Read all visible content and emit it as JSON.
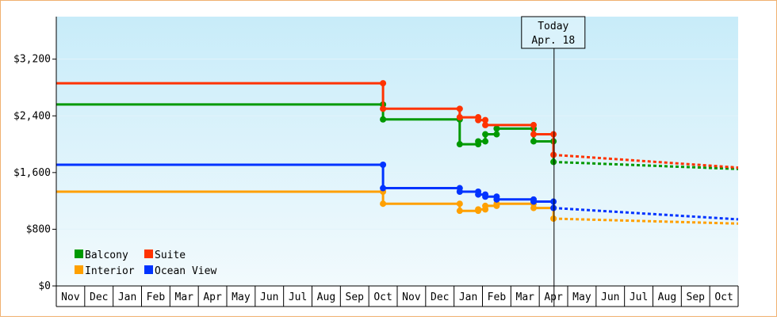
{
  "chart_data": {
    "type": "line",
    "y_ticks": [
      "$0",
      "$800",
      "$1,600",
      "$2,400",
      "$3,200"
    ],
    "y_tick_values": [
      0,
      800,
      1600,
      2400,
      3200
    ],
    "ylim": [
      0,
      3800
    ],
    "x_months": [
      "Nov",
      "Dec",
      "Jan",
      "Feb",
      "Mar",
      "Apr",
      "May",
      "Jun",
      "Jul",
      "Aug",
      "Sep",
      "Oct",
      "Nov",
      "Dec",
      "Jan",
      "Feb",
      "Mar",
      "Apr",
      "May",
      "Jun",
      "Jul",
      "Aug",
      "Sep",
      "Oct"
    ],
    "today_marker": {
      "line1": "Today",
      "line2": "Apr. 18",
      "x": 17.52
    },
    "legend": [
      {
        "label": "Balcony",
        "color": "#009900"
      },
      {
        "label": "Suite",
        "color": "#ff3300"
      },
      {
        "label": "Interior",
        "color": "#ffa000"
      },
      {
        "label": "Ocean View",
        "color": "#0033ff"
      }
    ],
    "series": [
      {
        "name": "Balcony",
        "color": "#009900",
        "points": [
          [
            0,
            2560
          ],
          [
            11.5,
            2560
          ],
          [
            11.5,
            2350
          ],
          [
            14.2,
            2350
          ],
          [
            14.2,
            2000
          ],
          [
            14.85,
            2000
          ],
          [
            14.85,
            2040
          ],
          [
            15.1,
            2040
          ],
          [
            15.1,
            2140
          ],
          [
            15.5,
            2140
          ],
          [
            15.5,
            2220
          ],
          [
            16.8,
            2220
          ],
          [
            16.8,
            2040
          ],
          [
            17.5,
            2040
          ],
          [
            17.5,
            1750
          ]
        ],
        "markers": [
          [
            11.5,
            2560
          ],
          [
            11.5,
            2350
          ],
          [
            14.2,
            2350
          ],
          [
            14.2,
            2000
          ],
          [
            14.85,
            2000
          ],
          [
            14.85,
            2040
          ],
          [
            15.1,
            2040
          ],
          [
            15.1,
            2140
          ],
          [
            15.5,
            2140
          ],
          [
            15.5,
            2220
          ],
          [
            16.8,
            2220
          ],
          [
            16.8,
            2040
          ],
          [
            17.5,
            2040
          ],
          [
            17.5,
            1750
          ]
        ],
        "forecast": [
          [
            17.5,
            1750
          ],
          [
            24,
            1650
          ]
        ]
      },
      {
        "name": "Suite",
        "color": "#ff3300",
        "points": [
          [
            0,
            2860
          ],
          [
            11.5,
            2860
          ],
          [
            11.5,
            2500
          ],
          [
            14.2,
            2500
          ],
          [
            14.2,
            2380
          ],
          [
            14.85,
            2380
          ],
          [
            14.85,
            2340
          ],
          [
            15.1,
            2340
          ],
          [
            15.1,
            2270
          ],
          [
            16.8,
            2270
          ],
          [
            16.8,
            2140
          ],
          [
            17.5,
            2140
          ],
          [
            17.5,
            1850
          ]
        ],
        "markers": [
          [
            11.5,
            2860
          ],
          [
            11.5,
            2500
          ],
          [
            14.2,
            2500
          ],
          [
            14.2,
            2380
          ],
          [
            14.85,
            2380
          ],
          [
            14.85,
            2340
          ],
          [
            15.1,
            2340
          ],
          [
            15.1,
            2270
          ],
          [
            16.8,
            2270
          ],
          [
            16.8,
            2140
          ],
          [
            17.5,
            2140
          ],
          [
            17.5,
            1850
          ]
        ],
        "forecast": [
          [
            17.5,
            1850
          ],
          [
            24,
            1670
          ]
        ]
      },
      {
        "name": "Interior",
        "color": "#ffa000",
        "points": [
          [
            0,
            1330
          ],
          [
            11.5,
            1330
          ],
          [
            11.5,
            1160
          ],
          [
            14.2,
            1160
          ],
          [
            14.2,
            1060
          ],
          [
            14.85,
            1060
          ],
          [
            14.85,
            1080
          ],
          [
            15.1,
            1080
          ],
          [
            15.1,
            1130
          ],
          [
            15.5,
            1130
          ],
          [
            15.5,
            1160
          ],
          [
            16.8,
            1160
          ],
          [
            16.8,
            1100
          ],
          [
            17.5,
            1100
          ],
          [
            17.5,
            950
          ]
        ],
        "markers": [
          [
            11.5,
            1330
          ],
          [
            11.5,
            1160
          ],
          [
            14.2,
            1160
          ],
          [
            14.2,
            1060
          ],
          [
            14.85,
            1060
          ],
          [
            14.85,
            1080
          ],
          [
            15.1,
            1080
          ],
          [
            15.1,
            1130
          ],
          [
            15.5,
            1130
          ],
          [
            15.5,
            1160
          ],
          [
            16.8,
            1160
          ],
          [
            16.8,
            1100
          ],
          [
            17.5,
            1100
          ],
          [
            17.5,
            950
          ]
        ],
        "forecast": [
          [
            17.5,
            950
          ],
          [
            24,
            880
          ]
        ]
      },
      {
        "name": "Ocean View",
        "color": "#0033ff",
        "points": [
          [
            0,
            1710
          ],
          [
            11.5,
            1710
          ],
          [
            11.5,
            1380
          ],
          [
            14.2,
            1380
          ],
          [
            14.2,
            1330
          ],
          [
            14.85,
            1330
          ],
          [
            14.85,
            1290
          ],
          [
            15.1,
            1290
          ],
          [
            15.1,
            1260
          ],
          [
            15.5,
            1260
          ],
          [
            15.5,
            1220
          ],
          [
            16.8,
            1220
          ],
          [
            16.8,
            1190
          ],
          [
            17.5,
            1190
          ],
          [
            17.5,
            1100
          ]
        ],
        "markers": [
          [
            11.5,
            1710
          ],
          [
            11.5,
            1380
          ],
          [
            14.2,
            1380
          ],
          [
            14.2,
            1330
          ],
          [
            14.85,
            1330
          ],
          [
            14.85,
            1290
          ],
          [
            15.1,
            1290
          ],
          [
            15.1,
            1260
          ],
          [
            15.5,
            1260
          ],
          [
            15.5,
            1220
          ],
          [
            16.8,
            1220
          ],
          [
            16.8,
            1190
          ],
          [
            17.5,
            1190
          ],
          [
            17.5,
            1100
          ]
        ],
        "forecast": [
          [
            17.5,
            1100
          ],
          [
            24,
            940
          ]
        ]
      }
    ]
  }
}
